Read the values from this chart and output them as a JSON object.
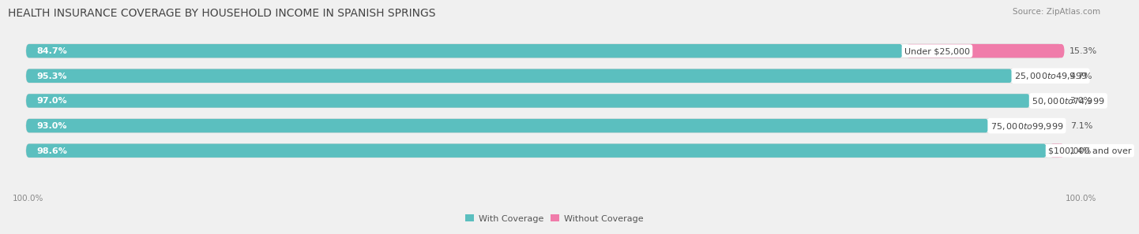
{
  "title": "HEALTH INSURANCE COVERAGE BY HOUSEHOLD INCOME IN SPANISH SPRINGS",
  "source": "Source: ZipAtlas.com",
  "categories": [
    "Under $25,000",
    "$25,000 to $49,999",
    "$50,000 to $74,999",
    "$75,000 to $99,999",
    "$100,000 and over"
  ],
  "with_coverage": [
    84.7,
    95.3,
    97.0,
    93.0,
    98.6
  ],
  "without_coverage": [
    15.3,
    4.7,
    3.0,
    7.1,
    1.4
  ],
  "coverage_color": "#5bbfbf",
  "no_coverage_color": "#f07caa",
  "bg_color": "#f0f0f0",
  "bar_bg_color": "#e0e0e0",
  "title_fontsize": 10,
  "label_fontsize": 8,
  "pct_fontsize": 8,
  "tick_fontsize": 7.5,
  "legend_fontsize": 8,
  "source_fontsize": 7.5,
  "bottom_labels": [
    "100.0%",
    "100.0%"
  ]
}
